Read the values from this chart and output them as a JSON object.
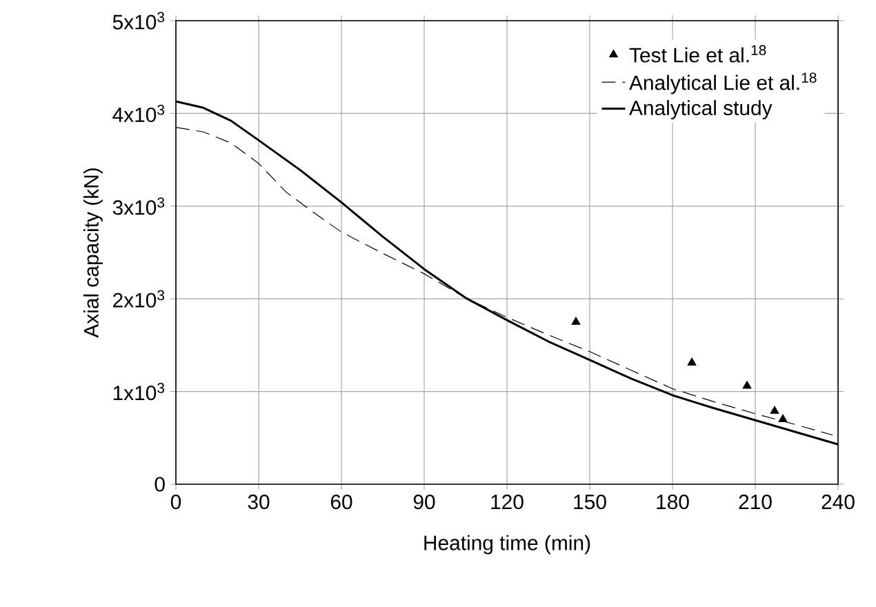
{
  "chart_data": {
    "type": "line",
    "xlabel": "Heating time (min)",
    "ylabel": "Axial capacity (kN)",
    "xlim": [
      0,
      240
    ],
    "ylim": [
      0,
      5000
    ],
    "xticks": [
      0,
      30,
      60,
      90,
      120,
      150,
      180,
      210,
      240
    ],
    "yticks": [
      0,
      {
        "value": 1000,
        "label": "1x10$^{3}$"
      },
      {
        "value": 2000,
        "label": "2x10$^{3}$"
      },
      {
        "value": 3000,
        "label": "3x10$^{3}$"
      },
      {
        "value": 4000,
        "label": "4x10$^{3}$"
      },
      {
        "value": 5000,
        "label": "5x10$^{3}$"
      }
    ],
    "grid": true,
    "legend": "top right",
    "series": [
      {
        "name": "Test Lie et al.$^{18}$",
        "type": "scatter",
        "marker": "triangle",
        "color": "#000000",
        "x": [
          145,
          187,
          207,
          217,
          220
        ],
        "values": [
          1750,
          1310,
          1060,
          790,
          700
        ]
      },
      {
        "name": "Analytical Lie et al.$^{18}$",
        "line_style": "dashed",
        "color": "#000000",
        "x": [
          0,
          10,
          20,
          30,
          40,
          50,
          60,
          75,
          90,
          105,
          120,
          135,
          150,
          165,
          180,
          195,
          210,
          225,
          238
        ],
        "values": [
          3850,
          3800,
          3680,
          3460,
          3150,
          2930,
          2720,
          2490,
          2270,
          2010,
          1800,
          1610,
          1430,
          1230,
          1030,
          890,
          760,
          640,
          530
        ]
      },
      {
        "name": "Analytical study",
        "line_style": "solid",
        "color": "#000000",
        "x": [
          0,
          10,
          20,
          30,
          45,
          60,
          75,
          90,
          105,
          120,
          135,
          150,
          165,
          180,
          195,
          210,
          225,
          240
        ],
        "values": [
          4130,
          4060,
          3920,
          3710,
          3390,
          3040,
          2670,
          2320,
          2010,
          1770,
          1540,
          1340,
          1140,
          960,
          820,
          690,
          560,
          430
        ]
      }
    ]
  }
}
